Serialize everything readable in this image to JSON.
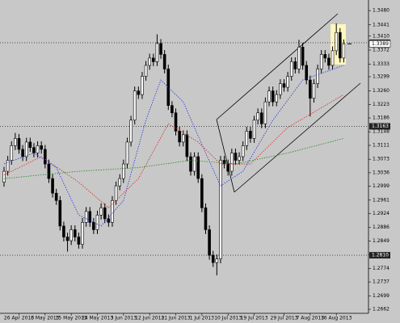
{
  "chart_data": {
    "type": "candlestick",
    "categories": [
      null,
      null,
      null,
      null,
      "26 Apr 2013",
      null,
      null,
      null,
      null,
      null,
      null,
      "6 May 2013",
      null,
      null,
      null,
      null,
      null,
      null,
      "15 May 2013",
      null,
      null,
      null,
      null,
      null,
      null,
      "24 May 2013",
      null,
      null,
      null,
      null,
      null,
      null,
      "3 Jun 2013",
      null,
      null,
      null,
      null,
      null,
      null,
      "12 Jun 2013",
      null,
      null,
      null,
      null,
      null,
      null,
      "21 Jun 2013",
      null,
      null,
      null,
      null,
      null,
      null,
      "1 Jul 2013",
      null,
      null,
      null,
      null,
      null,
      null,
      "10 Jul 2013",
      null,
      null,
      null,
      null,
      null,
      null,
      "19 Jul 2013",
      null,
      null,
      null,
      null,
      null,
      null,
      null,
      "29 Jul 2013",
      null,
      null,
      null,
      null,
      null,
      null,
      "7 Aug 2013",
      null,
      null,
      null,
      null,
      null,
      null,
      "16 Aug 2013",
      null,
      null
    ],
    "open": [
      1.301,
      1.304,
      1.307,
      1.311,
      1.313,
      1.31,
      1.308,
      1.312,
      1.3105,
      1.309,
      1.311,
      1.31,
      1.306,
      1.302,
      1.298,
      1.296,
      1.289,
      1.286,
      1.285,
      1.288,
      1.286,
      1.284,
      1.29,
      1.293,
      1.29,
      1.288,
      1.292,
      1.294,
      1.291,
      1.29,
      1.296,
      1.3,
      1.302,
      1.306,
      1.312,
      1.318,
      1.326,
      1.325,
      1.33,
      1.333,
      1.335,
      1.334,
      1.339,
      1.336,
      1.332,
      1.322,
      1.32,
      1.315,
      1.312,
      1.314,
      1.308,
      1.304,
      1.308,
      1.302,
      1.294,
      1.288,
      1.281,
      1.279,
      1.28,
      1.307,
      1.306,
      1.304,
      1.309,
      1.307,
      1.308,
      1.311,
      1.315,
      1.313,
      1.318,
      1.32,
      1.317,
      1.323,
      1.326,
      1.323,
      1.325,
      1.328,
      1.327,
      1.33,
      1.334,
      1.332,
      1.338,
      1.333,
      1.329,
      1.324,
      1.328,
      1.332,
      1.336,
      1.335,
      1.333,
      1.337,
      1.342,
      1.335
    ],
    "high": [
      1.3052,
      1.3082,
      1.3122,
      1.3145,
      1.3142,
      1.3112,
      1.3132,
      1.3132,
      1.3117,
      1.3122,
      1.3122,
      1.3112,
      1.3072,
      1.3032,
      1.2992,
      1.2972,
      1.2902,
      1.2872,
      1.2892,
      1.2892,
      1.2872,
      1.2912,
      1.2942,
      1.2942,
      1.2912,
      1.2932,
      1.2952,
      1.2952,
      1.2922,
      1.2972,
      1.3012,
      1.3032,
      1.3072,
      1.3132,
      1.3192,
      1.3272,
      1.3272,
      1.3312,
      1.3342,
      1.3362,
      1.3362,
      1.3415,
      1.3402,
      1.3372,
      1.3332,
      1.3232,
      1.3212,
      1.3162,
      1.3152,
      1.3152,
      1.3092,
      1.3092,
      1.3092,
      1.3032,
      1.2952,
      1.2892,
      1.2822,
      1.2812,
      1.3082,
      1.3082,
      1.3072,
      1.3102,
      1.3102,
      1.3092,
      1.3122,
      1.3162,
      1.3162,
      1.3192,
      1.3212,
      1.3212,
      1.3242,
      1.3272,
      1.3272,
      1.3262,
      1.3292,
      1.3292,
      1.3312,
      1.3352,
      1.3352,
      1.34,
      1.3392,
      1.3342,
      1.3302,
      1.3292,
      1.3332,
      1.3372,
      1.3372,
      1.3362,
      1.3382,
      1.3445,
      1.3432,
      1.3401
    ],
    "low": [
      1.2998,
      1.3028,
      1.3058,
      1.3098,
      1.3088,
      1.3068,
      1.3068,
      1.3093,
      1.3078,
      1.3078,
      1.3088,
      1.3048,
      1.3008,
      1.2968,
      1.2948,
      1.2878,
      1.2848,
      1.282,
      1.2838,
      1.2848,
      1.2828,
      1.2828,
      1.2888,
      1.2888,
      1.2868,
      1.2868,
      1.2908,
      1.2898,
      1.2888,
      1.2888,
      1.2948,
      1.2988,
      1.3008,
      1.3048,
      1.3108,
      1.3168,
      1.3238,
      1.3238,
      1.3288,
      1.3318,
      1.3328,
      1.3328,
      1.3348,
      1.3308,
      1.3208,
      1.3188,
      1.3138,
      1.3108,
      1.3108,
      1.3068,
      1.3028,
      1.3028,
      1.3008,
      1.2928,
      1.2868,
      1.2798,
      1.2778,
      1.2755,
      1.2788,
      1.3048,
      1.3028,
      1.3028,
      1.3058,
      1.3058,
      1.3068,
      1.3098,
      1.3118,
      1.3118,
      1.3168,
      1.3158,
      1.3158,
      1.3218,
      1.3218,
      1.3218,
      1.3238,
      1.3258,
      1.3258,
      1.3288,
      1.3308,
      1.3308,
      1.3318,
      1.3278,
      1.319,
      1.3228,
      1.3268,
      1.3308,
      1.3338,
      1.3318,
      1.3318,
      1.3358,
      1.3338,
      1.3338
    ],
    "close": [
      1.304,
      1.307,
      1.311,
      1.313,
      1.31,
      1.308,
      1.312,
      1.3105,
      1.309,
      1.311,
      1.31,
      1.306,
      1.302,
      1.298,
      1.296,
      1.289,
      1.286,
      1.285,
      1.288,
      1.286,
      1.284,
      1.29,
      1.293,
      1.29,
      1.288,
      1.292,
      1.294,
      1.291,
      1.29,
      1.296,
      1.3,
      1.302,
      1.306,
      1.312,
      1.318,
      1.326,
      1.325,
      1.33,
      1.333,
      1.335,
      1.334,
      1.339,
      1.336,
      1.332,
      1.322,
      1.32,
      1.315,
      1.312,
      1.314,
      1.308,
      1.304,
      1.308,
      1.302,
      1.294,
      1.288,
      1.281,
      1.279,
      1.28,
      1.307,
      1.306,
      1.304,
      1.309,
      1.307,
      1.308,
      1.311,
      1.315,
      1.313,
      1.318,
      1.32,
      1.317,
      1.323,
      1.326,
      1.323,
      1.325,
      1.328,
      1.327,
      1.33,
      1.334,
      1.332,
      1.338,
      1.333,
      1.329,
      1.324,
      1.328,
      1.332,
      1.336,
      1.335,
      1.333,
      1.337,
      1.342,
      1.335,
      1.3389
    ],
    "bull_color": "#ffffff",
    "bear_color": "#000000",
    "wick_color": "#000000",
    "overlays": [
      {
        "color": "#2233dd",
        "x": [
          0,
          8,
          14,
          20,
          26,
          32,
          38,
          42,
          48,
          54,
          58,
          64,
          72,
          80,
          91
        ],
        "values": [
          1.306,
          1.309,
          1.305,
          1.292,
          1.289,
          1.296,
          1.318,
          1.329,
          1.323,
          1.309,
          1.3,
          1.304,
          1.318,
          1.329,
          1.333
        ]
      },
      {
        "color": "#dd2222",
        "x": [
          0,
          10,
          20,
          28,
          36,
          44,
          52,
          58,
          66,
          76,
          91
        ],
        "values": [
          1.303,
          1.308,
          1.301,
          1.294,
          1.302,
          1.317,
          1.312,
          1.306,
          1.306,
          1.316,
          1.325
        ]
      },
      {
        "color": "#228822",
        "x": [
          0,
          20,
          36,
          50,
          62,
          76,
          91
        ],
        "values": [
          1.302,
          1.304,
          1.305,
          1.307,
          1.306,
          1.309,
          1.313
        ]
      }
    ],
    "levels": [
      1.3392,
      1.3163,
      {
        "value": 1.281,
        "label": "1.2810"
      }
    ],
    "last_price": 1.3389,
    "ylim": [
      1.2651,
      1.3509
    ],
    "yticks": [
      {
        "value": 1.348,
        "label": "1.3480"
      },
      1.3441,
      {
        "value": 1.341,
        "label": "1.3410"
      },
      1.3372,
      1.3333,
      1.3299,
      {
        "value": 1.326,
        "label": "1.3260"
      },
      1.3223,
      1.3186,
      1.3148,
      1.3111,
      1.3073,
      1.3036,
      1.2999,
      1.2961,
      1.2924,
      1.2886,
      1.2849,
      1.2811,
      1.2774,
      1.2737,
      1.2699,
      1.2662
    ],
    "background": "#c8c8c8"
  }
}
